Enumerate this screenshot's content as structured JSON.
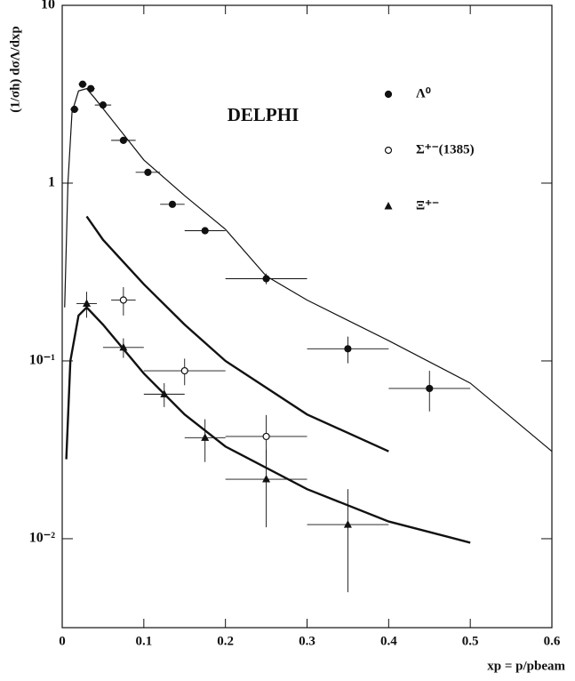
{
  "chart_data": {
    "type": "scatter",
    "title": "DELPHI",
    "x_label": "xp = p/pbeam",
    "y_label": "(1/σh) dσΛ/dxp",
    "ylog": true,
    "xlim": [
      0,
      0.6
    ],
    "ylim": [
      0.00316,
      10
    ],
    "xticks": [
      0,
      0.1,
      0.2,
      0.3,
      0.4,
      0.5,
      0.6
    ],
    "yticks": [
      {
        "value": 0.01,
        "label": "10⁻²"
      },
      {
        "value": 0.1,
        "label": "10⁻¹"
      },
      1,
      10
    ],
    "series": [
      {
        "name": "Λ⁰",
        "marker": "circle-filled",
        "color": "#111",
        "x": [
          0.015,
          0.025,
          0.035,
          0.05,
          0.075,
          0.105,
          0.135,
          0.175,
          0.25,
          0.35,
          0.45
        ],
        "values": [
          2.6,
          3.6,
          3.4,
          2.75,
          1.74,
          1.15,
          0.76,
          0.54,
          0.29,
          0.117,
          0.07
        ],
        "xerr": [
          0.005,
          0.005,
          0.005,
          0.01,
          0.015,
          0.015,
          0.015,
          0.025,
          0.05,
          0.05,
          0.05
        ],
        "yerr": [
          0.1,
          0.15,
          0.15,
          0.1,
          0.06,
          0.04,
          0.03,
          0.02,
          0.02,
          0.02,
          0.018
        ]
      },
      {
        "name": "Σ⁺⁻(1385)",
        "marker": "circle-open",
        "color": "#111",
        "x": [
          0.075,
          0.15,
          0.25
        ],
        "values": [
          0.22,
          0.088,
          0.0376
        ],
        "xerr": [
          0.015,
          0.05,
          0.05
        ],
        "yerr": [
          0.04,
          0.015,
          0.012
        ]
      },
      {
        "name": "Ξ⁺⁻",
        "marker": "triangle",
        "color": "#111",
        "x": [
          0.03,
          0.075,
          0.125,
          0.175,
          0.25,
          0.35
        ],
        "values": [
          0.21,
          0.119,
          0.065,
          0.037,
          0.0216,
          0.012
        ],
        "xerr": [
          0.0125,
          0.025,
          0.025,
          0.025,
          0.05,
          0.05
        ],
        "yerr": [
          0.035,
          0.015,
          0.01,
          0.01,
          0.01,
          0.007
        ]
      },
      {
        "marker": "line",
        "color": "#111",
        "line_width": 1.2,
        "x": [
          0.003,
          0.007,
          0.012,
          0.02,
          0.03,
          0.04,
          0.06,
          0.1,
          0.15,
          0.2,
          0.25,
          0.3,
          0.4,
          0.5,
          0.6
        ],
        "values": [
          0.2,
          1.0,
          2.5,
          3.3,
          3.4,
          3.0,
          2.3,
          1.35,
          0.85,
          0.55,
          0.3,
          0.22,
          0.13,
          0.075,
          0.031
        ]
      },
      {
        "marker": "line",
        "color": "#111",
        "line_width": 2.4,
        "x": [
          0.03,
          0.05,
          0.1,
          0.15,
          0.2,
          0.3,
          0.4
        ],
        "values": [
          0.65,
          0.48,
          0.27,
          0.16,
          0.1,
          0.05,
          0.031
        ]
      },
      {
        "marker": "line",
        "color": "#111",
        "line_width": 2.4,
        "x": [
          0.005,
          0.01,
          0.02,
          0.03,
          0.05,
          0.1,
          0.15,
          0.2,
          0.3,
          0.4,
          0.5
        ],
        "values": [
          0.028,
          0.1,
          0.18,
          0.2,
          0.16,
          0.085,
          0.05,
          0.033,
          0.019,
          0.0125,
          0.0095
        ]
      }
    ]
  }
}
